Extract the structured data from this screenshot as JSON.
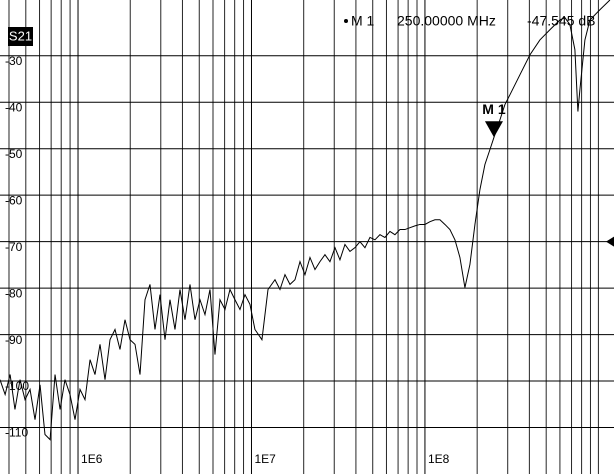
{
  "chart_data": {
    "type": "line",
    "trace_label": "S21",
    "xscale": "log",
    "xlim": [
      355000,
      1230000000
    ],
    "ylim": [
      -120,
      -18
    ],
    "xticks": [
      {
        "value": 1000000,
        "label": "1E6"
      },
      {
        "value": 10000000,
        "label": "1E7"
      },
      {
        "value": 100000000,
        "label": "1E8"
      }
    ],
    "xminor": [
      400000,
      500000,
      600000,
      700000,
      800000,
      900000,
      2000000,
      3000000,
      4000000,
      5000000,
      6000000,
      7000000,
      8000000,
      9000000,
      20000000,
      30000000,
      40000000,
      50000000,
      60000000,
      70000000,
      80000000,
      90000000,
      200000000,
      300000000,
      400000000,
      500000000,
      600000000,
      700000000,
      800000000,
      900000000,
      1000000000
    ],
    "yticks": [
      -30,
      -40,
      -50,
      -60,
      -70,
      -80,
      -90,
      -100,
      -110
    ],
    "grid": true,
    "ref_level": -70,
    "x": [
      355000,
      380000,
      406000,
      433000,
      463000,
      495000,
      529000,
      565000,
      604000,
      645000,
      690000,
      737000,
      788000,
      841000,
      899000,
      961000,
      1027000,
      1097000,
      1173000,
      1253000,
      1339000,
      1431000,
      1529000,
      1634000,
      1746000,
      1866000,
      1994000,
      2131000,
      2277000,
      2433000,
      2600000,
      2778000,
      2969000,
      3173000,
      3390000,
      3623000,
      3871000,
      4137000,
      4421000,
      4724000,
      5048000,
      5394000,
      5764000,
      6160000,
      6582000,
      7034000,
      7516000,
      8032000,
      8583000,
      9172000,
      9801000,
      10470000,
      11490000,
      12450000,
      13660000,
      14600000,
      15600000,
      16670000,
      17810000,
      19040000,
      20340000,
      21740000,
      23230000,
      24820000,
      26520000,
      28340000,
      30290000,
      32360000,
      34580000,
      36960000,
      39490000,
      42200000,
      45100000,
      48190000,
      51500000,
      55030000,
      58800000,
      62840000,
      67150000,
      71750000,
      76670000,
      81930000,
      87560000,
      93570000,
      100000000,
      106900000,
      114200000,
      122000000,
      130400000,
      139300000,
      148900000,
      159100000,
      170000000,
      181700000,
      194200000,
      207500000,
      221700000,
      236900000,
      250000000,
      270500000,
      289100000,
      308900000,
      352700000,
      402900000,
      460000000,
      525300000,
      599800000,
      641100000,
      684900000,
      732000000,
      761700000,
      782300000,
      836000000,
      893300000,
      1020000000,
      1165000000
    ],
    "series": [
      {
        "name": "S21",
        "color": "#000000",
        "values": [
          -99.7,
          -102.9,
          -98.6,
          -106.1,
          -99.7,
          -104.0,
          -101.8,
          -108.3,
          -100.8,
          -111.5,
          -112.6,
          -98.6,
          -106.1,
          -99.7,
          -102.9,
          -108.3,
          -101.8,
          -104.0,
          -95.4,
          -98.6,
          -92.1,
          -99.7,
          -91.1,
          -88.9,
          -93.2,
          -86.8,
          -91.1,
          -92.1,
          -98.6,
          -82.5,
          -79.2,
          -88.9,
          -81.4,
          -91.1,
          -82.5,
          -88.9,
          -80.3,
          -86.8,
          -79.2,
          -86.8,
          -82.5,
          -85.7,
          -80.3,
          -94.3,
          -82.5,
          -84.6,
          -80.3,
          -82.5,
          -84.6,
          -81.4,
          -83.5,
          -88.9,
          -91.1,
          -80.3,
          -78.2,
          -80.3,
          -77.1,
          -79.2,
          -78.2,
          -74.3,
          -77.1,
          -73.4,
          -76.0,
          -74.3,
          -72.8,
          -74.3,
          -71.3,
          -73.9,
          -70.6,
          -72.1,
          -71.3,
          -70.0,
          -71.3,
          -69.1,
          -69.6,
          -68.5,
          -69.1,
          -67.8,
          -68.5,
          -67.4,
          -67.4,
          -67.0,
          -66.6,
          -66.3,
          -66.3,
          -65.7,
          -65.3,
          -65.3,
          -66.3,
          -67.4,
          -69.6,
          -73.4,
          -79.9,
          -74.9,
          -66.3,
          -58.8,
          -53.4,
          -50.2,
          -47.545,
          -43.8,
          -40.5,
          -38.4,
          -34.1,
          -29.8,
          -26.6,
          -24.4,
          -22.3,
          -21.8,
          -23.3,
          -28.7,
          -42.0,
          -37.3,
          -26.6,
          -22.3,
          -20.1,
          -18.0
        ]
      }
    ],
    "markers": [
      {
        "name": "M 1",
        "x": 250000000,
        "value": -47.545,
        "x_label": "250.00000 MHz",
        "value_label": "-47.545 dB"
      }
    ]
  }
}
